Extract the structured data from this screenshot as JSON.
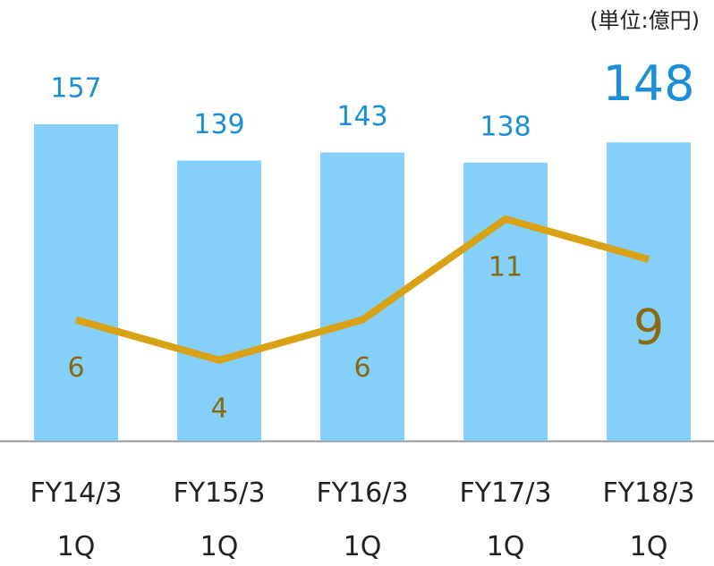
{
  "chart_data": {
    "type": "bar",
    "unit_label": "(単位:億円)",
    "categories": [
      "FY14/3\n1Q",
      "FY15/3\n1Q",
      "FY16/3\n1Q",
      "FY17/3\n1Q",
      "FY18/3\n1Q"
    ],
    "series": [
      {
        "type": "bar",
        "color": "#84d0fa",
        "values": [
          157,
          139,
          143,
          138,
          148
        ]
      },
      {
        "type": "line",
        "color": "#d9a114",
        "axis": "y2",
        "values": [
          6,
          4,
          6,
          11,
          9
        ]
      }
    ],
    "ylim": [
      0,
      200
    ],
    "y2lim": [
      0,
      20
    ]
  }
}
